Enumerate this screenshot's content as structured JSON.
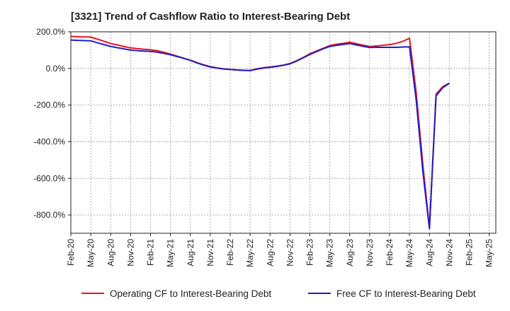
{
  "chart_data": {
    "type": "line",
    "title": "[3321]  Trend of Cashflow Ratio to Interest-Bearing Debt",
    "xlabel": "",
    "ylabel": "",
    "ylim": [
      -900,
      200
    ],
    "y_ticks": [
      "200.0%",
      "0.0%",
      "-200.0%",
      "-400.0%",
      "-600.0%",
      "-800.0%"
    ],
    "y_tick_values": [
      200,
      0,
      -200,
      -400,
      -600,
      -800
    ],
    "x_ticks": [
      "Feb-20",
      "May-20",
      "Aug-20",
      "Nov-20",
      "Feb-21",
      "May-21",
      "Aug-21",
      "Nov-21",
      "Feb-22",
      "May-22",
      "Aug-22",
      "Nov-22",
      "Feb-23",
      "May-23",
      "Aug-23",
      "Nov-23",
      "Feb-24",
      "May-24",
      "Aug-24",
      "Nov-24",
      "Feb-25",
      "May-25"
    ],
    "grid": true,
    "legend_position": "bottom",
    "x": [
      "Feb-20",
      "Mar-20",
      "Apr-20",
      "May-20",
      "Jun-20",
      "Jul-20",
      "Aug-20",
      "Sep-20",
      "Oct-20",
      "Nov-20",
      "Dec-20",
      "Jan-21",
      "Feb-21",
      "Mar-21",
      "Apr-21",
      "May-21",
      "Jun-21",
      "Jul-21",
      "Aug-21",
      "Sep-21",
      "Oct-21",
      "Nov-21",
      "Dec-21",
      "Jan-22",
      "Feb-22",
      "Mar-22",
      "Apr-22",
      "May-22",
      "Jun-22",
      "Jul-22",
      "Aug-22",
      "Sep-22",
      "Oct-22",
      "Nov-22",
      "Dec-22",
      "Jan-23",
      "Feb-23",
      "Mar-23",
      "Apr-23",
      "May-23",
      "Jun-23",
      "Jul-23",
      "Aug-23",
      "Sep-23",
      "Oct-23",
      "Nov-23",
      "Dec-23",
      "Jan-24",
      "Feb-24",
      "Mar-24",
      "Apr-24",
      "May-24",
      "Jun-24",
      "Jul-24",
      "Aug-24",
      "Sep-24",
      "Oct-24",
      "Nov-24"
    ],
    "series": [
      {
        "name": "Operating CF to Interest-Bearing Debt",
        "color": "#e8141d",
        "values": [
          175,
          173,
          172,
          171,
          160,
          148,
          136,
          128,
          120,
          112,
          108,
          105,
          102,
          97,
          88,
          78,
          67,
          56,
          45,
          32,
          20,
          10,
          3,
          -2,
          -5,
          -8,
          -10,
          -11,
          -2,
          4,
          8,
          13,
          18,
          27,
          42,
          60,
          80,
          95,
          110,
          125,
          132,
          137,
          143,
          135,
          127,
          120,
          123,
          126,
          130,
          137,
          148,
          165,
          -130,
          -520,
          -870,
          -140,
          -100,
          -80
        ]
      },
      {
        "name": "Free CF to Interest-Bearing Debt",
        "color": "#1e1ec8",
        "values": [
          155,
          153,
          152,
          151,
          140,
          130,
          120,
          113,
          107,
          100,
          97,
          95,
          93,
          89,
          82,
          75,
          65,
          55,
          44,
          30,
          18,
          8,
          2,
          -3,
          -6,
          -9,
          -11,
          -12,
          -4,
          2,
          6,
          11,
          17,
          25,
          40,
          58,
          76,
          92,
          107,
          120,
          126,
          131,
          136,
          128,
          121,
          114,
          115,
          115,
          115,
          115,
          117,
          118,
          -170,
          -560,
          -875,
          -150,
          -105,
          -82
        ]
      }
    ]
  }
}
